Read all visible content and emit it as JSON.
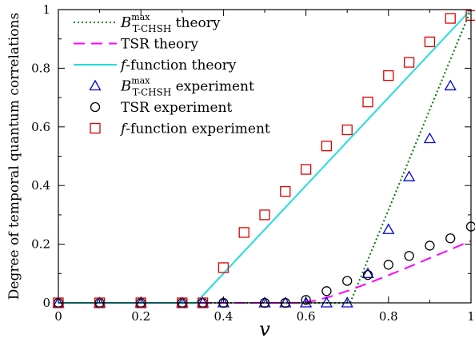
{
  "chart_data": {
    "type": "scatter",
    "title": "",
    "xlabel": "v",
    "ylabel": "Degree of temporal quantum correlations",
    "xlim": [
      0,
      1
    ],
    "ylim": [
      0,
      1
    ],
    "x_ticks": [
      "0",
      "0.2",
      "0.4",
      "0.6",
      "0.8",
      "1"
    ],
    "y_ticks": [
      "0",
      "0.2",
      "0.4",
      "0.6",
      "0.8",
      "1"
    ],
    "grid": false,
    "legend_position": "top-left",
    "series": [
      {
        "name": "B^max_T-CHSH theory",
        "legend_base": "B",
        "legend_sup": "max",
        "legend_sub": "T-CHSH",
        "legend_tail": " theory",
        "kind": "line",
        "style": "dotted",
        "color": "#007a00",
        "x": [
          0,
          0.7071,
          1.0
        ],
        "y": [
          0,
          0,
          1.0
        ]
      },
      {
        "name": "TSR theory",
        "legend_text": "TSR theory",
        "kind": "line",
        "style": "dashed",
        "color": "#ff00ff",
        "x": [
          0,
          0.5774,
          0.62,
          0.66,
          0.7,
          0.74,
          0.78,
          0.82,
          0.86,
          0.9,
          0.94,
          0.98,
          1.0
        ],
        "y": [
          0,
          0,
          0.0067,
          0.0218,
          0.0404,
          0.061,
          0.0828,
          0.1055,
          0.1287,
          0.1522,
          0.1758,
          0.1997,
          0.2113
        ]
      },
      {
        "name": "f-function theory",
        "legend_italic": "f",
        "legend_text": "-function theory",
        "kind": "line",
        "style": "solid",
        "color": "#22dddd",
        "x": [
          0,
          0.3333,
          1.0
        ],
        "y": [
          0,
          0,
          1.0
        ]
      },
      {
        "name": "B^max_T-CHSH experiment",
        "legend_base": "B",
        "legend_sup": "max",
        "legend_sub": "T-CHSH",
        "legend_tail": " experiment",
        "kind": "marker",
        "marker": "triangle",
        "color": "#0000dd",
        "x": [
          0,
          0.1,
          0.2,
          0.3,
          0.35,
          0.4,
          0.5,
          0.55,
          0.6,
          0.65,
          0.7,
          0.75,
          0.8,
          0.85,
          0.9,
          0.95
        ],
        "y": [
          0,
          0,
          0,
          0,
          0,
          0,
          0,
          0,
          0,
          0,
          0,
          0.1,
          0.25,
          0.43,
          0.56,
          0.74
        ]
      },
      {
        "name": "TSR experiment",
        "legend_text": "TSR experiment",
        "kind": "marker",
        "marker": "circle",
        "color": "#000000",
        "x": [
          0,
          0.1,
          0.2,
          0.3,
          0.35,
          0.4,
          0.5,
          0.55,
          0.6,
          0.65,
          0.7,
          0.75,
          0.8,
          0.85,
          0.9,
          0.95,
          1.0
        ],
        "y": [
          0,
          0,
          0,
          0,
          0,
          0,
          0,
          0,
          0.01,
          0.04,
          0.075,
          0.095,
          0.13,
          0.16,
          0.195,
          0.22,
          0.26
        ]
      },
      {
        "name": "f-function experiment",
        "legend_italic": "f",
        "legend_text": "-function experiment",
        "kind": "marker",
        "marker": "square",
        "color": "#dd0000",
        "x": [
          0,
          0.1,
          0.2,
          0.3,
          0.35,
          0.4,
          0.45,
          0.5,
          0.55,
          0.6,
          0.65,
          0.7,
          0.75,
          0.8,
          0.85,
          0.9,
          0.95,
          1.0
        ],
        "y": [
          0,
          0,
          0,
          0,
          0,
          0.12,
          0.24,
          0.3,
          0.38,
          0.455,
          0.535,
          0.59,
          0.685,
          0.775,
          0.82,
          0.89,
          0.97,
          0.98
        ]
      }
    ]
  }
}
